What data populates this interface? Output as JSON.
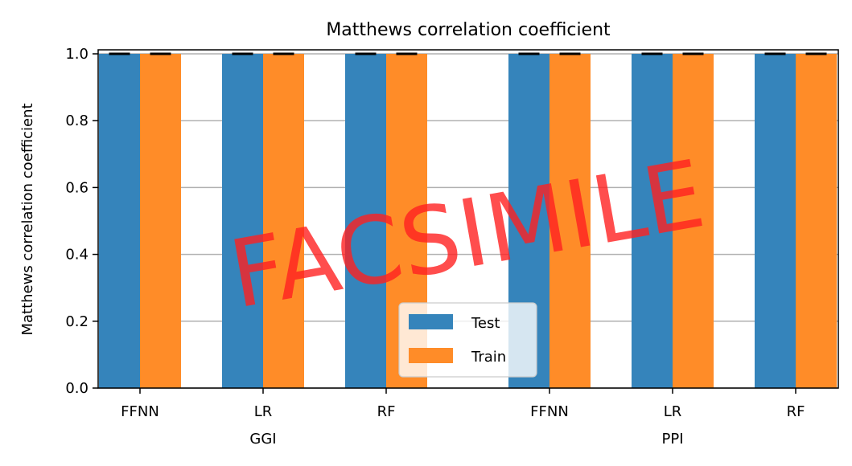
{
  "chart_data": {
    "type": "bar",
    "title": "Matthews correlation coefficient",
    "xlabel": "",
    "ylabel": "Matthews correlation coefficient",
    "ylim": [
      0,
      1.0
    ],
    "yticks": [
      "0.0",
      "0.2",
      "0.4",
      "0.6",
      "0.8",
      "1.0"
    ],
    "grid": "horizontal",
    "legend_position": "bottom-center",
    "categories": [
      "FFNN",
      "LR",
      "RF",
      "FFNN",
      "LR",
      "RF"
    ],
    "groups": [
      {
        "label": "GGI",
        "categories": [
          "FFNN",
          "LR",
          "RF"
        ]
      },
      {
        "label": "PPI",
        "categories": [
          "FFNN",
          "LR",
          "RF"
        ]
      }
    ],
    "series": [
      {
        "name": "Test",
        "color": "#3584bb",
        "values": [
          1.0,
          1.0,
          1.0,
          1.0,
          1.0,
          1.0
        ]
      },
      {
        "name": "Train",
        "color": "#ff8c28",
        "values": [
          1.0,
          1.0,
          1.0,
          1.0,
          1.0,
          1.0
        ]
      }
    ],
    "error_bars": true
  },
  "watermark": {
    "text": "FACSIMILE",
    "color": "#ff2020"
  }
}
